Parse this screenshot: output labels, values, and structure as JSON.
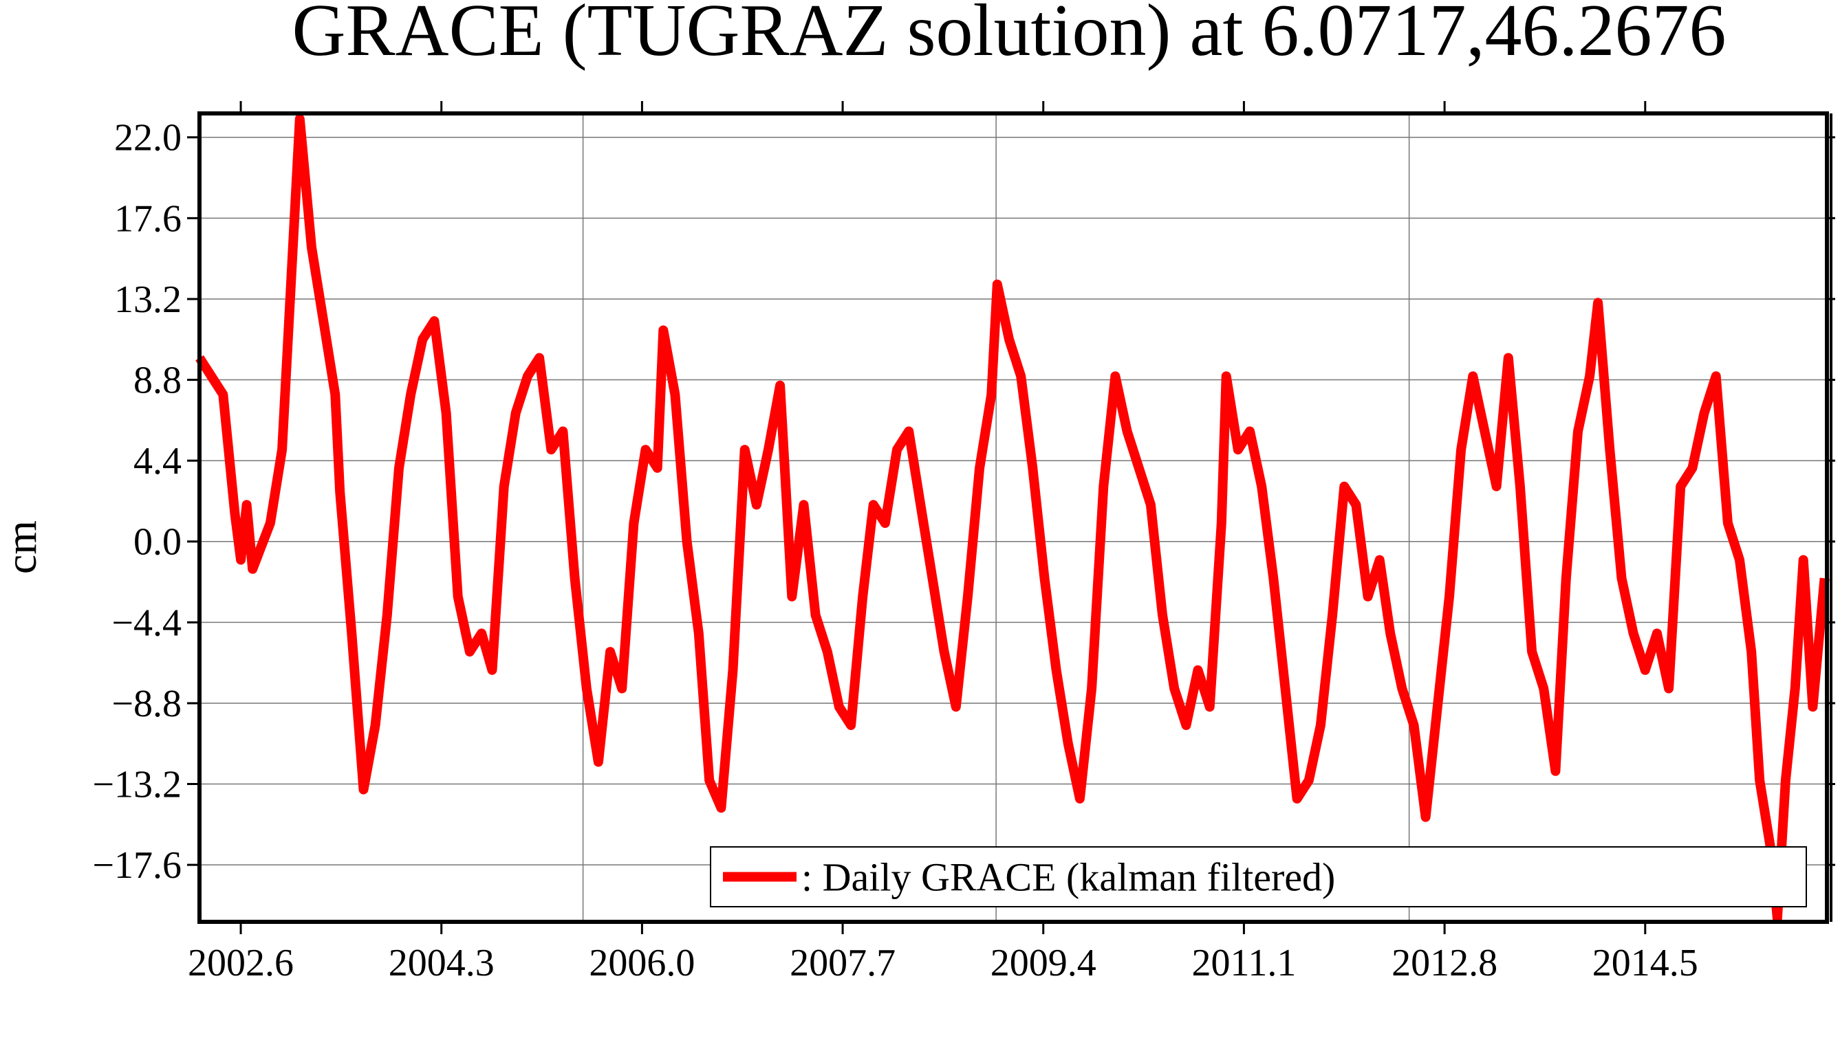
{
  "chart_data": {
    "type": "line",
    "title": "GRACE (TUGRAZ solution) at 6.0717,46.2676",
    "y_label": "cm",
    "x": [
      2002.25,
      2002.45,
      2002.55,
      2002.6,
      2002.65,
      2002.7,
      2002.85,
      2002.95,
      2003.1,
      2003.2,
      2003.3,
      2003.4,
      2003.44,
      2003.54,
      2003.64,
      2003.74,
      2003.84,
      2003.94,
      2004.04,
      2004.14,
      2004.24,
      2004.34,
      2004.44,
      2004.54,
      2004.64,
      2004.73,
      2004.83,
      2004.93,
      2005.03,
      2005.13,
      2005.23,
      2005.33,
      2005.43,
      2005.53,
      2005.63,
      2005.73,
      2005.83,
      2005.93,
      2006.03,
      2006.13,
      2006.18,
      2006.28,
      2006.38,
      2006.48,
      2006.57,
      2006.67,
      2006.77,
      2006.87,
      2006.97,
      2007.07,
      2007.17,
      2007.27,
      2007.37,
      2007.47,
      2007.57,
      2007.67,
      2007.77,
      2007.87,
      2007.96,
      2008.06,
      2008.16,
      2008.26,
      2008.36,
      2008.46,
      2008.56,
      2008.66,
      2008.76,
      2008.86,
      2008.96,
      2009.01,
      2009.11,
      2009.21,
      2009.31,
      2009.41,
      2009.51,
      2009.61,
      2009.71,
      2009.81,
      2009.91,
      2010.01,
      2010.11,
      2010.21,
      2010.31,
      2010.41,
      2010.51,
      2010.61,
      2010.71,
      2010.81,
      2010.91,
      2010.95,
      2011.05,
      2011.15,
      2011.25,
      2011.35,
      2011.45,
      2011.55,
      2011.65,
      2011.75,
      2011.85,
      2011.95,
      2012.05,
      2012.15,
      2012.25,
      2012.34,
      2012.44,
      2012.54,
      2012.64,
      2012.74,
      2012.84,
      2012.94,
      2013.04,
      2013.14,
      2013.24,
      2013.34,
      2013.44,
      2013.54,
      2013.64,
      2013.74,
      2013.83,
      2013.93,
      2014.03,
      2014.1,
      2014.2,
      2014.3,
      2014.4,
      2014.5,
      2014.6,
      2014.7,
      2014.8,
      2014.9,
      2015.0,
      2015.1,
      2015.2,
      2015.3,
      2015.4,
      2015.47,
      2015.57,
      2015.62,
      2015.69,
      2015.77,
      2015.84,
      2015.92,
      2016.02
    ],
    "series": [
      {
        "name": ": Daily GRACE (kalman filtered)",
        "color": "#ff0000",
        "values": [
          10,
          8,
          1.5,
          -1,
          2,
          -1.5,
          1,
          5,
          23,
          16,
          12,
          8,
          2.7,
          -5,
          -13.5,
          -10,
          -4,
          4,
          8,
          11,
          12,
          7,
          -3,
          -6,
          -5,
          -7,
          3,
          7,
          9,
          10,
          5,
          6,
          -2,
          -8,
          -12,
          -6,
          -8,
          1,
          5,
          4,
          11.5,
          8,
          0,
          -5,
          -13,
          -14.5,
          -7,
          5,
          2,
          5,
          8.5,
          -3,
          2,
          -4,
          -6,
          -9,
          -10,
          -3,
          2,
          1,
          5,
          6,
          2,
          -2,
          -6,
          -9,
          -3,
          4,
          8,
          14,
          11,
          9,
          4,
          -2,
          -7,
          -11,
          -14,
          -8,
          3,
          9,
          6,
          4,
          2,
          -4,
          -8,
          -10,
          -7,
          -9,
          1,
          9,
          5,
          6,
          3,
          -2,
          -8,
          -14,
          -13,
          -10,
          -4,
          3,
          2,
          -3,
          -1,
          -5,
          -8,
          -10,
          -15,
          -9,
          -3,
          5,
          9,
          6,
          3,
          10,
          3,
          -6,
          -8,
          -12.5,
          -2,
          6,
          9,
          13,
          5,
          -2,
          -5,
          -7,
          -5,
          -8,
          3,
          4,
          7,
          9,
          1,
          -1,
          -6,
          -13,
          -17,
          -20.5,
          -13,
          -8,
          -1,
          -9,
          -2
        ]
      }
    ],
    "xlim": [
      2002.25,
      2016.04
    ],
    "ylim": [
      -20.7,
      23.3
    ],
    "xticks": [
      2002.6,
      2004.3,
      {
        "value": 2006,
        "label": "2006.0"
      },
      2007.7,
      2009.4,
      2011.1,
      2012.8,
      2014.5
    ],
    "yticks": [
      {
        "value": 22,
        "label": "22.0"
      },
      17.6,
      13.2,
      8.8,
      4.4,
      {
        "value": 0,
        "label": "0.0"
      },
      {
        "value": -4.4,
        "label": "−4.4"
      },
      {
        "value": -8.8,
        "label": "−8.8"
      },
      {
        "value": -13.2,
        "label": "−13.2"
      },
      {
        "value": -17.6,
        "label": "−17.6"
      }
    ],
    "xgrid": [
      2005.5,
      2009.0,
      2012.5
    ],
    "grid": true,
    "legend": "lower right"
  }
}
